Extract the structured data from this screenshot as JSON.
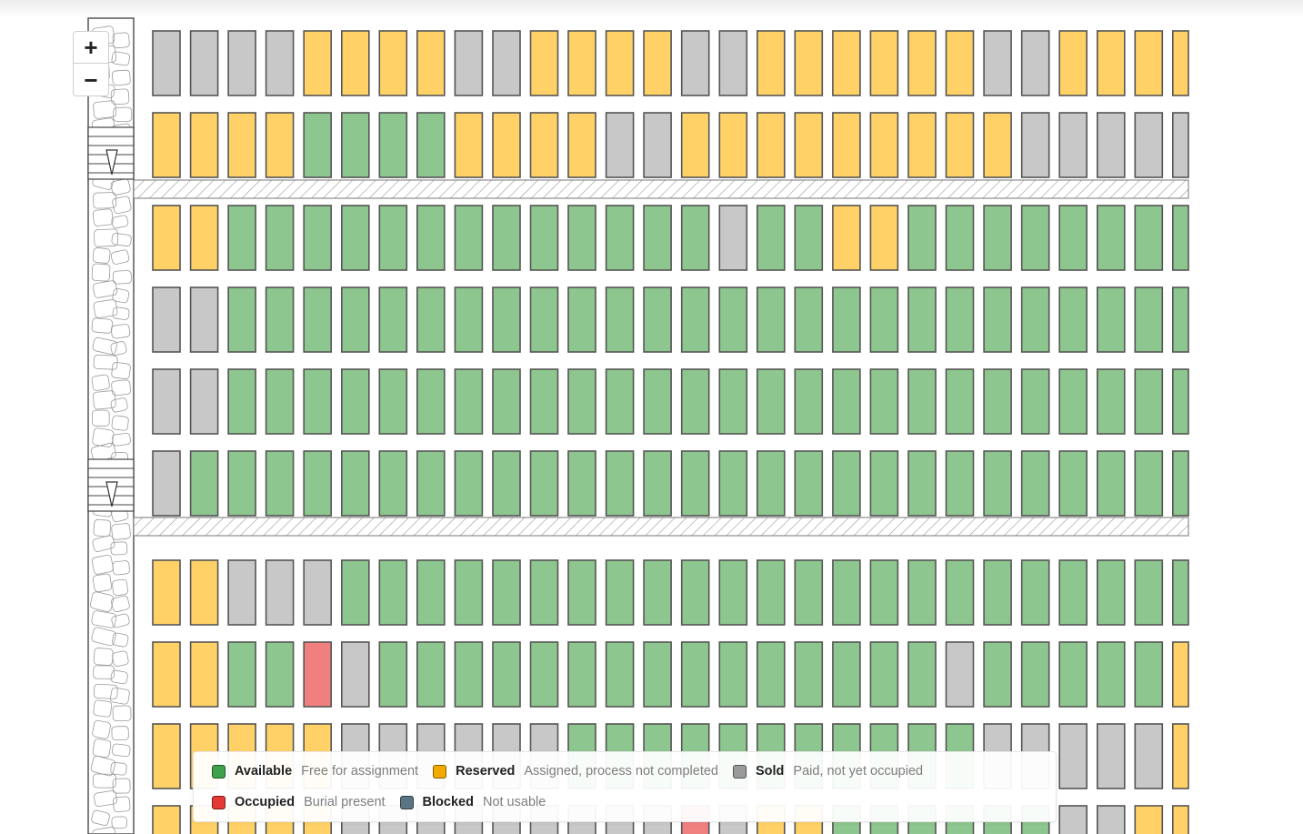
{
  "colors": {
    "available": "#8dc68e",
    "reserved": "#ffd166",
    "sold": "#c8c8c8",
    "occupied": "#f08080",
    "blocked": "#5b7b8c",
    "plot_stroke": "#555555"
  },
  "zoom_controls": {
    "zoom_in": "+",
    "zoom_out": "−"
  },
  "legend": {
    "items": [
      {
        "key": "available",
        "label": "Available",
        "description": "Free for assignment",
        "swatch": "#3fa14a"
      },
      {
        "key": "reserved",
        "label": "Reserved",
        "description": "Assigned, process not completed",
        "swatch": "#f2a900"
      },
      {
        "key": "sold",
        "label": "Sold",
        "description": "Paid, not yet occupied",
        "swatch": "#9a9a9a"
      },
      {
        "key": "occupied",
        "label": "Occupied",
        "description": "Burial present",
        "swatch": "#e53935"
      },
      {
        "key": "blocked",
        "label": "Blocked",
        "description": "Not usable",
        "swatch": "#5a7482"
      }
    ]
  },
  "plot_rows": [
    "SSSSRRRRSSRRRRSSRRRRRRSSRRRR",
    "RRRRAAAARRRRSSRRRRRRRRRSSSSS",
    "RRAAAAAAAAAAAAASAARRAAAAAAAA",
    "SSAAAAAAAAAAAAAAAAAAAAAAAAAA",
    "SSAAAAAAAAAAAAAAAAAAAAAAAAAA",
    "SAAAAAAAAAAAAAAAAAAAAAAAAAAA",
    "RRSSSAAAAAAAAAAAAAAAAAAAAAAA",
    "RRAAOSAAAAAAAAAAAAAAASAAAAAR",
    "RRRRRSSSSSSAAAAAAAAAAASSSSSR",
    "RRRRRSSSSSSSSSOSRRAAAAAASSRR"
  ]
}
